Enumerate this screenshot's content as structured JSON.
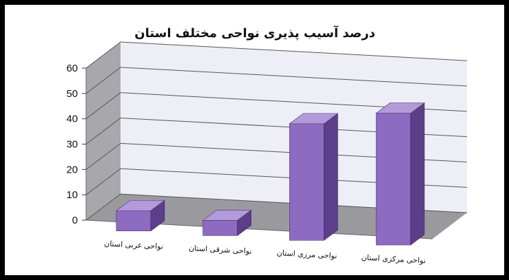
{
  "chart_data": {
    "type": "bar",
    "title": "درصد آسیب پذیری نواحی مختلف استان",
    "xlabel": "",
    "ylabel": "",
    "categories": [
      "نواحی غربی استان",
      "نواحی شرقی استان",
      "نواحی مرزی استان",
      "نواحی مرکزی استان"
    ],
    "values": [
      8,
      6,
      46,
      52
    ],
    "ylim": [
      0,
      60
    ],
    "yticks": [
      0,
      10,
      20,
      30,
      40,
      50,
      60
    ],
    "grid": true,
    "legend": "none",
    "colors": {
      "bar_front": "#8d6bc0",
      "bar_side": "#5b3f8a",
      "bar_top": "#b39ad8",
      "back_wall": "#eeeef7",
      "side_wall": "#a8a8ac",
      "floor": "#9a9a9e"
    }
  }
}
